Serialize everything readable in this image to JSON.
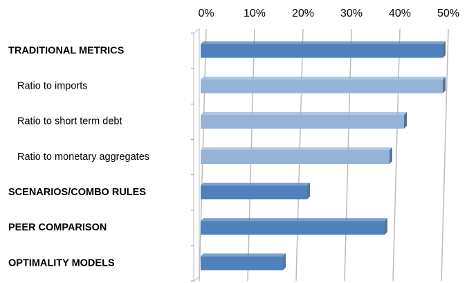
{
  "chart_data": {
    "type": "bar",
    "orientation": "horizontal",
    "categories": [
      "TRADITIONAL METRICS",
      "Ratio to imports",
      "Ratio to short term debt",
      "Ratio to monetary aggregates",
      "SCENARIOS/COMBO RULES",
      "PEER COMPARISON",
      "OPTIMALITY MODELS"
    ],
    "category_bold": [
      true,
      false,
      false,
      false,
      true,
      true,
      true
    ],
    "values": [
      50,
      50,
      42,
      39,
      22,
      38,
      17
    ],
    "colors": [
      "#4f81bd",
      "#95b3d7",
      "#95b3d7",
      "#95b3d7",
      "#4f81bd",
      "#4f81bd",
      "#4f81bd"
    ],
    "xlim": [
      0,
      50
    ],
    "xticks": [
      {
        "value": 0,
        "label": "0%"
      },
      {
        "value": 10,
        "label": "10%"
      },
      {
        "value": 20,
        "label": "20%"
      },
      {
        "value": 30,
        "label": "30%"
      },
      {
        "value": 40,
        "label": "40%"
      },
      {
        "value": 50,
        "label": "50%"
      }
    ],
    "grid": true
  }
}
